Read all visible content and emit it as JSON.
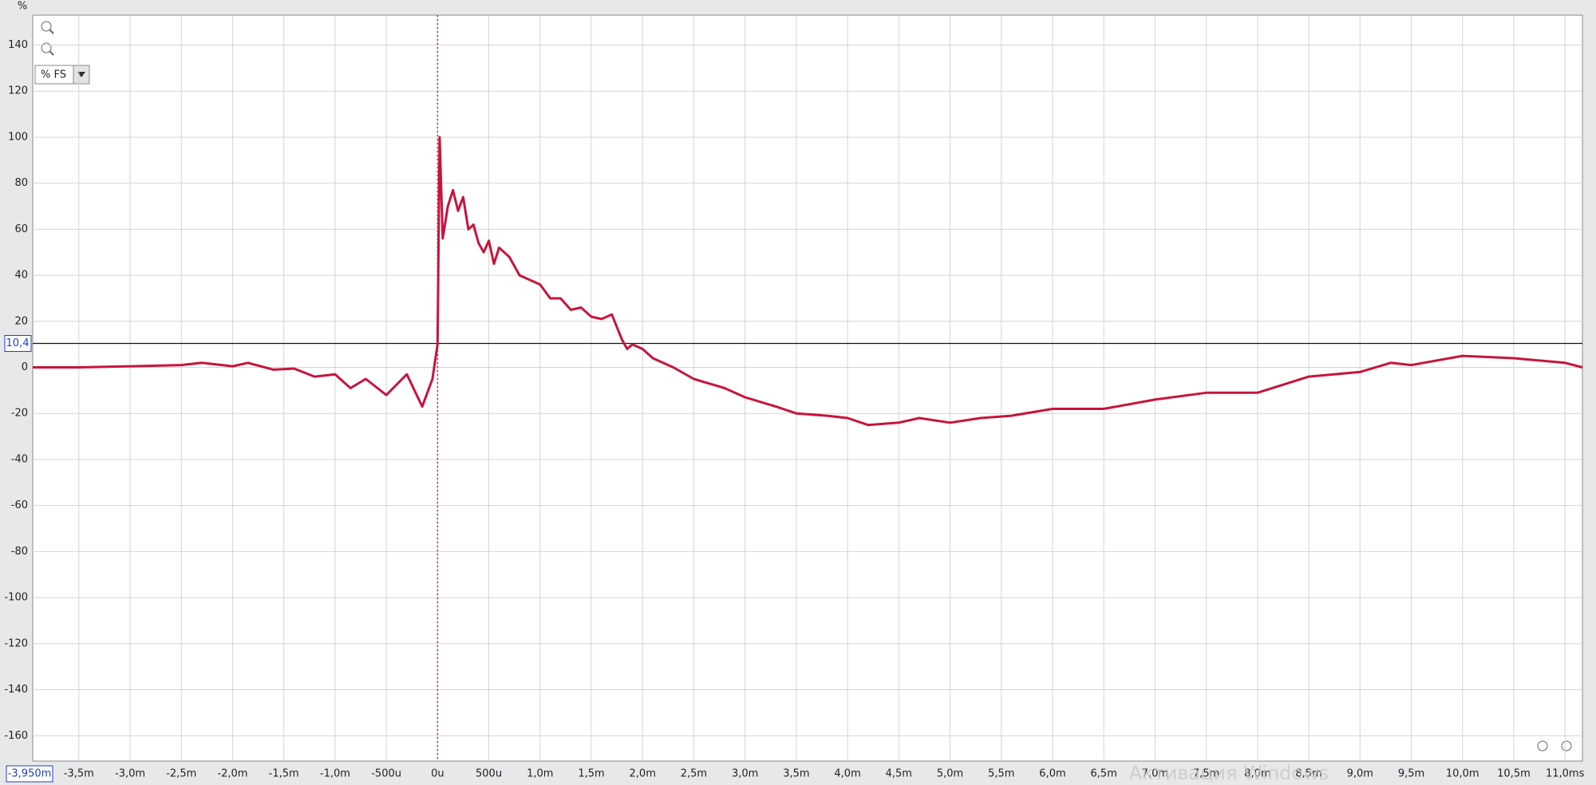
{
  "chart_data": {
    "type": "line",
    "y_axis_label": "%",
    "unit_selector": "% FS",
    "x_start_label": {
      "value": -3.95,
      "label": "-3,950m"
    },
    "cursor_y": {
      "value": 10.4,
      "label": "10,4"
    },
    "vertical_marker_x": 0,
    "watermark": "Активация Windows",
    "grid": true,
    "xlim": [
      -3.95,
      11.17
    ],
    "ylim": [
      -171,
      153
    ],
    "xticks": [
      {
        "value": -3.5,
        "label": "-3,5m"
      },
      {
        "value": -3.0,
        "label": "-3,0m"
      },
      {
        "value": -2.5,
        "label": "-2,5m"
      },
      {
        "value": -2.0,
        "label": "-2,0m"
      },
      {
        "value": -1.5,
        "label": "-1,5m"
      },
      {
        "value": -1.0,
        "label": "-1,0m"
      },
      {
        "value": -0.5,
        "label": "-500u"
      },
      {
        "value": 0,
        "label": "0u"
      },
      {
        "value": 0.5,
        "label": "500u"
      },
      {
        "value": 1.0,
        "label": "1,0m"
      },
      {
        "value": 1.5,
        "label": "1,5m"
      },
      {
        "value": 2.0,
        "label": "2,0m"
      },
      {
        "value": 2.5,
        "label": "2,5m"
      },
      {
        "value": 3.0,
        "label": "3,0m"
      },
      {
        "value": 3.5,
        "label": "3,5m"
      },
      {
        "value": 4.0,
        "label": "4,0m"
      },
      {
        "value": 4.5,
        "label": "4,5m"
      },
      {
        "value": 5.0,
        "label": "5,0m"
      },
      {
        "value": 5.5,
        "label": "5,5m"
      },
      {
        "value": 6.0,
        "label": "6,0m"
      },
      {
        "value": 6.5,
        "label": "6,5m"
      },
      {
        "value": 7.0,
        "label": "7,0m"
      },
      {
        "value": 7.5,
        "label": "7,5m"
      },
      {
        "value": 8.0,
        "label": "8,0m"
      },
      {
        "value": 8.5,
        "label": "8,5m"
      },
      {
        "value": 9.0,
        "label": "9,0m"
      },
      {
        "value": 9.5,
        "label": "9,5m"
      },
      {
        "value": 10.0,
        "label": "10,0m"
      },
      {
        "value": 10.5,
        "label": "10,5m"
      },
      {
        "value": 11.0,
        "label": "11,0ms"
      }
    ],
    "yticks": [
      140,
      120,
      100,
      80,
      60,
      40,
      20,
      0,
      -20,
      -40,
      -60,
      -80,
      -100,
      -120,
      -140,
      -160
    ],
    "x": [
      -3.95,
      -3.5,
      -3.0,
      -2.5,
      -2.3,
      -2.0,
      -1.85,
      -1.6,
      -1.4,
      -1.2,
      -1.0,
      -0.85,
      -0.7,
      -0.5,
      -0.3,
      -0.15,
      -0.05,
      0.0,
      0.02,
      0.05,
      0.1,
      0.15,
      0.2,
      0.25,
      0.3,
      0.35,
      0.4,
      0.45,
      0.5,
      0.55,
      0.6,
      0.7,
      0.8,
      0.9,
      1.0,
      1.1,
      1.2,
      1.3,
      1.4,
      1.5,
      1.6,
      1.7,
      1.8,
      1.85,
      1.9,
      2.0,
      2.1,
      2.3,
      2.5,
      2.8,
      3.0,
      3.3,
      3.5,
      3.8,
      4.0,
      4.2,
      4.5,
      4.7,
      5.0,
      5.3,
      5.6,
      6.0,
      6.5,
      7.0,
      7.5,
      8.0,
      8.5,
      9.0,
      9.3,
      9.5,
      10.0,
      10.5,
      11.0,
      11.17
    ],
    "series": [
      {
        "color": "#c8143c",
        "values": [
          0,
          0,
          0.5,
          1,
          2,
          0.5,
          2,
          -1,
          -0.5,
          -4,
          -3,
          -9,
          -5,
          -12,
          -3,
          -17,
          -5,
          10,
          100,
          56,
          70,
          77,
          68,
          74,
          60,
          62,
          54,
          50,
          55,
          45,
          52,
          48,
          40,
          38,
          36,
          30,
          30,
          25,
          26,
          22,
          21,
          23,
          12,
          8,
          10,
          8,
          4,
          0,
          -5,
          -9,
          -13,
          -17,
          -20,
          -21,
          -22,
          -25,
          -24,
          -22,
          -24,
          -22,
          -21,
          -18,
          -18,
          -14,
          -11,
          -11,
          -4,
          -2,
          2,
          1,
          5,
          4,
          2,
          0
        ]
      }
    ]
  }
}
